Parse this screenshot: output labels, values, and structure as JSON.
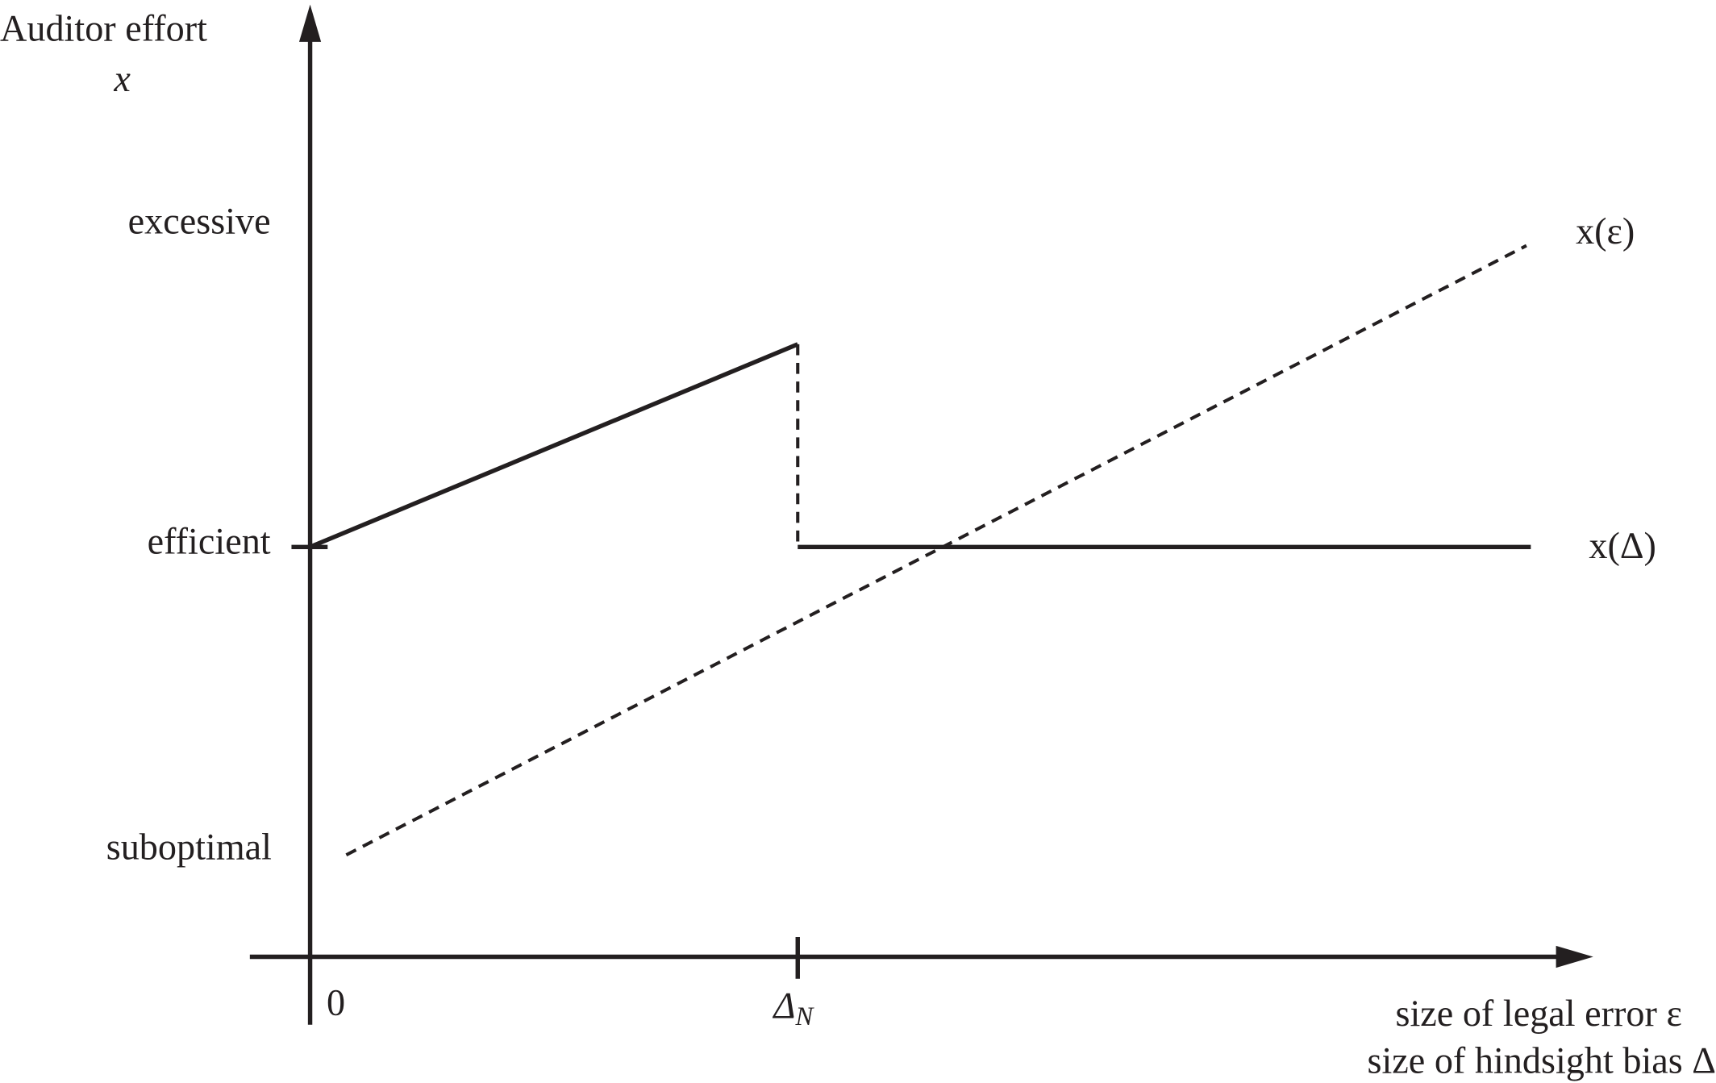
{
  "y_axis": {
    "title": "Auditor effort",
    "symbol": "x",
    "levels": [
      "excessive",
      "efficient",
      "suboptimal"
    ]
  },
  "x_axis": {
    "origin": "0",
    "tick": {
      "symbol": "Δ",
      "subscript": "N"
    },
    "titles": [
      "size of legal error ε",
      "size of hindsight bias Δ"
    ]
  },
  "curves": [
    {
      "label": "x(ε)"
    },
    {
      "label": "x(Δ)"
    }
  ]
}
